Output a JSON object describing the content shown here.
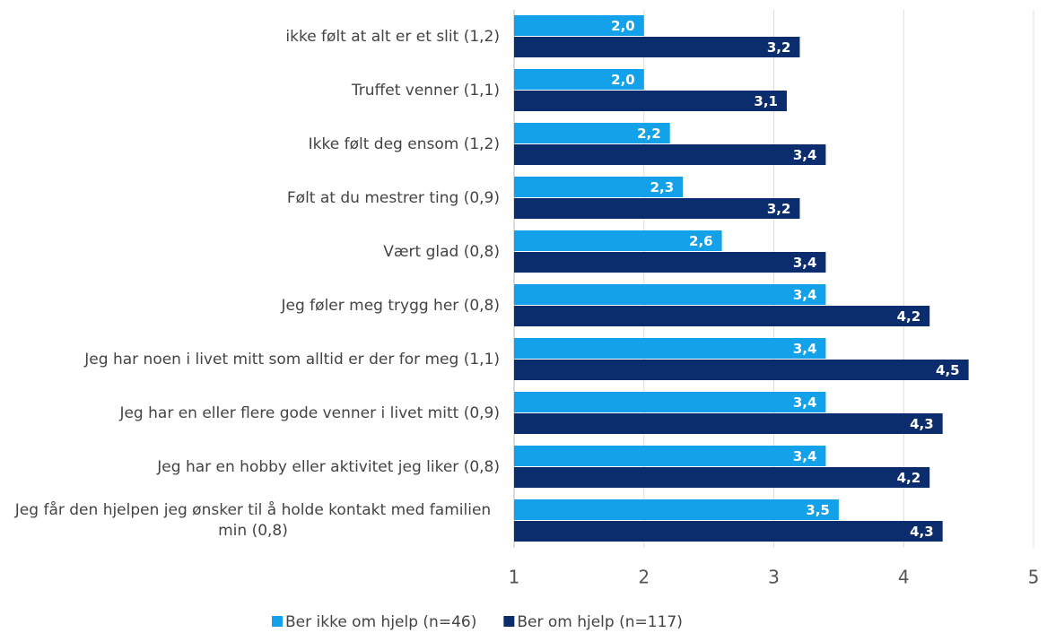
{
  "chart_data": {
    "type": "bar",
    "orientation": "horizontal",
    "categories": [
      "ikke følt at alt er et slit (1,2)",
      "Truffet venner (1,1)",
      "Ikke følt deg ensom (1,2)",
      "Følt at du mestrer ting (0,9)",
      "Vært glad (0,8)",
      "Jeg føler meg trygg her (0,8)",
      "Jeg har noen i livet mitt som alltid er der for meg (1,1)",
      "Jeg har en eller flere gode venner i livet mitt (0,9)",
      "Jeg har en hobby eller aktivitet jeg liker (0,8)",
      "Jeg får den hjelpen jeg ønsker til å holde kontakt med familien min (0,8)"
    ],
    "series": [
      {
        "name": "Ber ikke om hjelp (n=46)",
        "color": "#13a1e9",
        "values": [
          2.0,
          2.0,
          2.2,
          2.3,
          2.6,
          3.4,
          3.4,
          3.4,
          3.4,
          3.5
        ],
        "value_labels": [
          "2,0",
          "2,0",
          "2,2",
          "2,3",
          "2,6",
          "3,4",
          "3,4",
          "3,4",
          "3,4",
          "3,5"
        ]
      },
      {
        "name": "Ber om hjelp (n=117)",
        "color": "#0b2d6e",
        "values": [
          3.2,
          3.1,
          3.4,
          3.2,
          3.4,
          4.2,
          4.5,
          4.3,
          4.2,
          4.3
        ],
        "value_labels": [
          "3,2",
          "3,1",
          "3,4",
          "3,2",
          "3,4",
          "4,2",
          "4,5",
          "4,3",
          "4,2",
          "4,3"
        ]
      }
    ],
    "xlim": [
      1,
      5
    ],
    "xticks": [
      1,
      2,
      3,
      4,
      5
    ],
    "grid": true,
    "legend": "bottom"
  }
}
